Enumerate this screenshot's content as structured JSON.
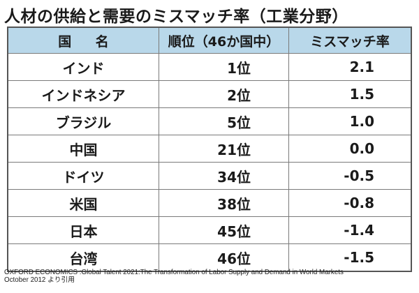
{
  "title": "人材の供給と需要のミスマッチ率（工業分野）",
  "table": {
    "headers": {
      "country": "国 名",
      "rank": "順位（46か国中）",
      "rate": "ミスマッチ率"
    },
    "rows": [
      {
        "country": "インド",
        "rank": "1位",
        "rate": "2.1"
      },
      {
        "country": "インドネシア",
        "rank": "2位",
        "rate": "1.5"
      },
      {
        "country": "ブラジル",
        "rank": "5位",
        "rate": "1.0"
      },
      {
        "country": "中国",
        "rank": "21位",
        "rate": "0.0"
      },
      {
        "country": "ドイツ",
        "rank": "34位",
        "rate": "-0.5"
      },
      {
        "country": "米国",
        "rank": "38位",
        "rate": "-0.8"
      },
      {
        "country": "日本",
        "rank": "45位",
        "rate": "-1.4"
      },
      {
        "country": "台湾",
        "rank": "46位",
        "rate": "-1.5"
      }
    ]
  },
  "source": {
    "line1": "OXFORD ECONOMICS :Global Talent 2021:The Transformation of Labor Supply and Demand in World Markets",
    "line2": "October 2012 より引用"
  },
  "colors": {
    "header_background": "#b9d8ea",
    "border": "#555555"
  }
}
